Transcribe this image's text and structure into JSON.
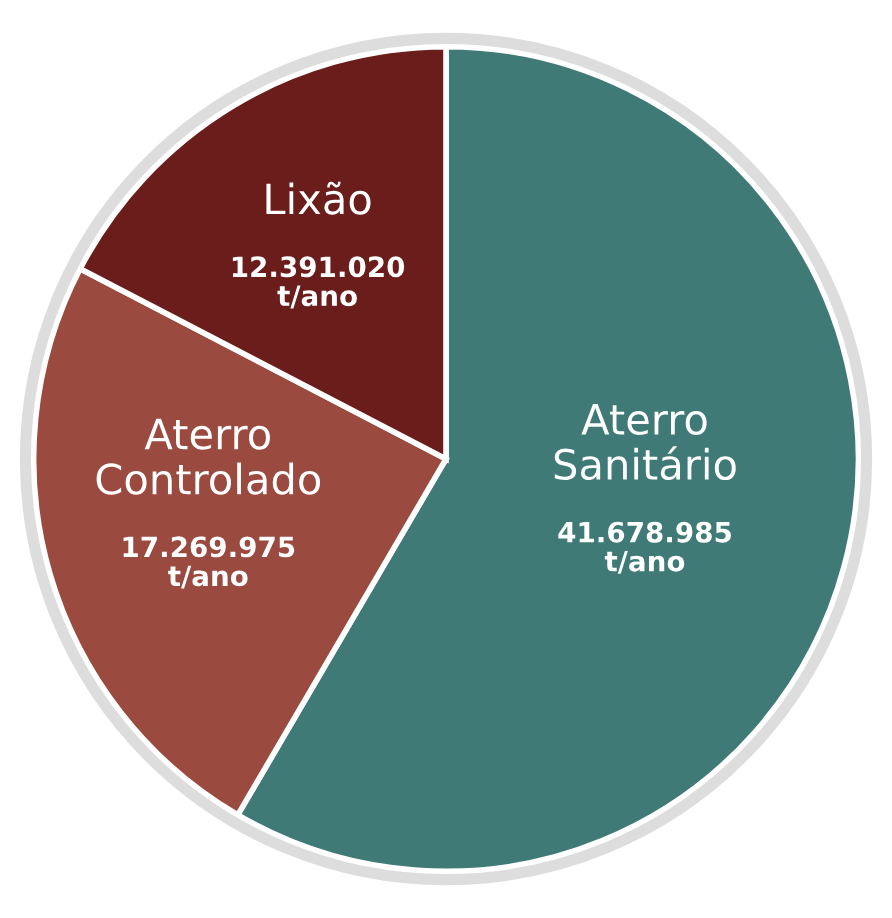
{
  "chart_data": {
    "type": "pie",
    "categories": [
      "Aterro Sanitário",
      "Aterro Controlado",
      "Lixão"
    ],
    "values": [
      41678985,
      17269975,
      12391020
    ],
    "colors": [
      "#3f7a77",
      "#9a4a3f",
      "#6b1d1c"
    ],
    "value_labels": [
      "41.678.985\nt/ano",
      "17.269.975\nt/ano",
      "12.391.020\nt/ano"
    ],
    "legend": false
  }
}
